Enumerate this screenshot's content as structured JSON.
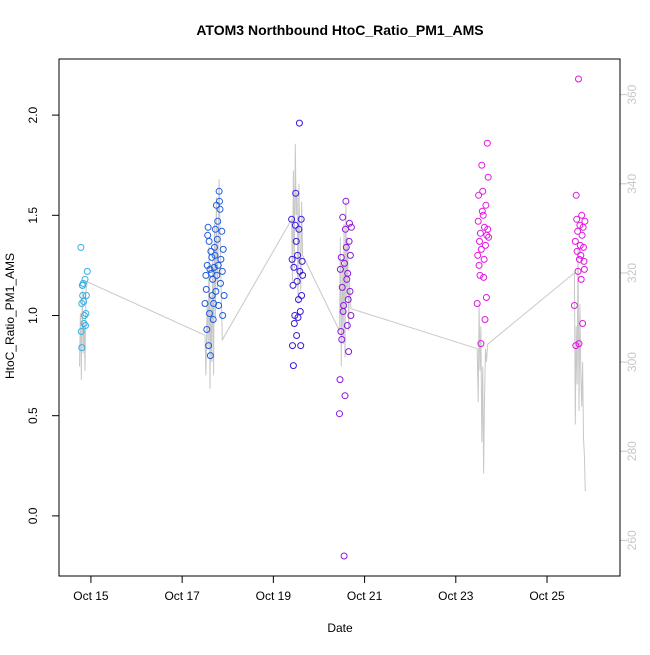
{
  "chart_data": {
    "type": "scatter",
    "title": "ATOM3 Northbound HtoC_Ratio_PM1_AMS",
    "xlabel": "Date",
    "ylabel": "HtoC_Ratio_PM1_AMS",
    "x_ticks": [
      "Oct 15",
      "Oct 17",
      "Oct 19",
      "Oct 21",
      "Oct 23",
      "Oct 25"
    ],
    "y_ticks": [
      "0.0",
      "0.5",
      "1.0",
      "1.5",
      "2.0"
    ],
    "y2_ticks": [
      "260",
      "280",
      "300",
      "320",
      "340",
      "360"
    ],
    "xlim": [
      14.3,
      26.6
    ],
    "ylim": [
      -0.3,
      2.28
    ],
    "y2lim": [
      252,
      368
    ],
    "grid": false,
    "point_colors": [
      "#3aaee0",
      "#1f5ce0",
      "#3a18e0",
      "#8a18e0",
      "#e018e0"
    ],
    "line_color": "#c8c8c8",
    "series": [
      {
        "color": "#3aaee0",
        "points": [
          [
            14.78,
            1.34
          ],
          [
            14.79,
            0.92
          ],
          [
            14.8,
            1.06
          ],
          [
            14.8,
            0.84
          ],
          [
            14.81,
            1.15
          ],
          [
            14.82,
            1.1
          ],
          [
            14.82,
            1.15
          ],
          [
            14.83,
            1.16
          ],
          [
            14.84,
            1.07
          ],
          [
            14.85,
            0.96
          ],
          [
            14.86,
            1.0
          ],
          [
            14.87,
            1.18
          ],
          [
            14.88,
            0.95
          ],
          [
            14.89,
            1.01
          ],
          [
            14.9,
            1.1
          ],
          [
            14.92,
            1.22
          ]
        ]
      },
      {
        "color": "#1f5ce0",
        "points": [
          [
            17.5,
            1.06
          ],
          [
            17.52,
            1.2
          ],
          [
            17.53,
            1.13
          ],
          [
            17.54,
            0.93
          ],
          [
            17.55,
            1.25
          ],
          [
            17.56,
            1.4
          ],
          [
            17.57,
            1.44
          ],
          [
            17.58,
            0.85
          ],
          [
            17.59,
            1.37
          ],
          [
            17.6,
            1.01
          ],
          [
            17.61,
            1.23
          ],
          [
            17.62,
            0.8
          ],
          [
            17.63,
            1.32
          ],
          [
            17.64,
            1.21
          ],
          [
            17.65,
            1.29
          ],
          [
            17.66,
            1.1
          ],
          [
            17.67,
            1.18
          ],
          [
            17.68,
            0.98
          ],
          [
            17.69,
            1.06
          ],
          [
            17.7,
            1.24
          ],
          [
            17.71,
            1.34
          ],
          [
            17.72,
            1.3
          ],
          [
            17.73,
            1.43
          ],
          [
            17.74,
            1.12
          ],
          [
            17.75,
            1.55
          ],
          [
            17.76,
            1.2
          ],
          [
            17.77,
            1.38
          ],
          [
            17.78,
            1.47
          ],
          [
            17.79,
            1.25
          ],
          [
            17.8,
            1.05
          ],
          [
            17.81,
            1.62
          ],
          [
            17.82,
            1.57
          ],
          [
            17.83,
            1.53
          ],
          [
            17.84,
            1.16
          ],
          [
            17.85,
            1.28
          ],
          [
            17.87,
            1.42
          ],
          [
            17.88,
            1.22
          ],
          [
            17.89,
            1.0
          ],
          [
            17.9,
            1.33
          ],
          [
            17.92,
            1.1
          ]
        ]
      },
      {
        "color": "#3a18e0",
        "points": [
          [
            19.4,
            1.48
          ],
          [
            19.41,
            1.28
          ],
          [
            19.42,
            0.85
          ],
          [
            19.43,
            1.15
          ],
          [
            19.44,
            0.75
          ],
          [
            19.45,
            1.24
          ],
          [
            19.46,
            0.96
          ],
          [
            19.47,
            1.0
          ],
          [
            19.48,
            1.45
          ],
          [
            19.49,
            1.61
          ],
          [
            19.5,
            1.37
          ],
          [
            19.51,
            0.9
          ],
          [
            19.52,
            1.17
          ],
          [
            19.53,
            1.3
          ],
          [
            19.54,
            0.99
          ],
          [
            19.55,
            1.08
          ],
          [
            19.56,
            1.43
          ],
          [
            19.57,
            1.96
          ],
          [
            19.58,
            1.22
          ],
          [
            19.59,
            1.02
          ],
          [
            19.6,
            0.85
          ],
          [
            19.61,
            1.48
          ],
          [
            19.62,
            1.1
          ],
          [
            19.63,
            1.27
          ],
          [
            19.64,
            1.2
          ]
        ]
      },
      {
        "color": "#8a18e0",
        "points": [
          [
            20.45,
            0.51
          ],
          [
            20.46,
            0.68
          ],
          [
            20.47,
            1.23
          ],
          [
            20.48,
            0.92
          ],
          [
            20.49,
            1.29
          ],
          [
            20.5,
            0.88
          ],
          [
            20.51,
            1.14
          ],
          [
            20.52,
            1.49
          ],
          [
            20.53,
            1.02
          ],
          [
            20.54,
            1.05
          ],
          [
            20.55,
            -0.2
          ],
          [
            20.56,
            1.26
          ],
          [
            20.57,
            0.6
          ],
          [
            20.58,
            1.43
          ],
          [
            20.59,
            1.57
          ],
          [
            20.6,
            1.34
          ],
          [
            20.61,
            1.18
          ],
          [
            20.62,
            0.95
          ],
          [
            20.63,
            1.21
          ],
          [
            20.64,
            1.08
          ],
          [
            20.65,
            0.82
          ],
          [
            20.66,
            1.37
          ],
          [
            20.67,
            1.46
          ],
          [
            20.68,
            1.12
          ],
          [
            20.69,
            1.3
          ],
          [
            20.7,
            1.0
          ],
          [
            20.71,
            1.44
          ]
        ]
      },
      {
        "color": "#e018e0",
        "points": [
          [
            23.47,
            1.06
          ],
          [
            23.48,
            1.3
          ],
          [
            23.49,
            1.47
          ],
          [
            23.5,
            1.6
          ],
          [
            23.51,
            1.25
          ],
          [
            23.52,
            1.37
          ],
          [
            23.53,
            1.2
          ],
          [
            23.54,
            1.41
          ],
          [
            23.55,
            0.86
          ],
          [
            23.56,
            1.33
          ],
          [
            23.57,
            1.75
          ],
          [
            23.58,
            1.52
          ],
          [
            23.59,
            1.62
          ],
          [
            23.6,
            1.5
          ],
          [
            23.61,
            1.19
          ],
          [
            23.62,
            1.28
          ],
          [
            23.63,
            1.44
          ],
          [
            23.64,
            0.98
          ],
          [
            23.65,
            1.35
          ],
          [
            23.66,
            1.55
          ],
          [
            23.67,
            1.09
          ],
          [
            23.68,
            1.4
          ],
          [
            23.69,
            1.86
          ],
          [
            23.7,
            1.43
          ],
          [
            23.71,
            1.69
          ],
          [
            23.72,
            1.39
          ],
          [
            25.6,
            1.05
          ],
          [
            25.62,
            1.37
          ],
          [
            25.63,
            0.85
          ],
          [
            25.64,
            1.6
          ],
          [
            25.65,
            1.48
          ],
          [
            25.66,
            1.32
          ],
          [
            25.67,
            1.42
          ],
          [
            25.68,
            1.22
          ],
          [
            25.69,
            2.18
          ],
          [
            25.7,
            0.86
          ],
          [
            25.71,
            1.28
          ],
          [
            25.72,
            1.45
          ],
          [
            25.73,
            1.35
          ],
          [
            25.74,
            1.3
          ],
          [
            25.75,
            1.18
          ],
          [
            25.76,
            1.5
          ],
          [
            25.77,
            1.4
          ],
          [
            25.78,
            0.96
          ],
          [
            25.79,
            1.44
          ],
          [
            25.8,
            1.34
          ],
          [
            25.81,
            1.27
          ],
          [
            25.82,
            1.23
          ],
          [
            25.83,
            1.47
          ]
        ]
      }
    ],
    "altitude_line": [
      [
        14.75,
        299
      ],
      [
        14.77,
        311
      ],
      [
        14.78,
        305
      ],
      [
        14.79,
        296
      ],
      [
        14.81,
        316
      ],
      [
        14.83,
        302
      ],
      [
        14.85,
        309
      ],
      [
        14.87,
        298
      ],
      [
        14.89,
        316
      ],
      [
        14.92,
        318
      ],
      [
        17.5,
        306
      ],
      [
        17.52,
        297
      ],
      [
        17.55,
        314
      ],
      [
        17.57,
        303
      ],
      [
        17.59,
        326
      ],
      [
        17.61,
        294
      ],
      [
        17.63,
        315
      ],
      [
        17.65,
        300
      ],
      [
        17.67,
        323
      ],
      [
        17.69,
        297
      ],
      [
        17.71,
        331
      ],
      [
        17.73,
        310
      ],
      [
        17.75,
        337
      ],
      [
        17.77,
        316
      ],
      [
        17.79,
        325
      ],
      [
        17.81,
        341
      ],
      [
        17.83,
        330
      ],
      [
        17.85,
        319
      ],
      [
        17.88,
        305
      ],
      [
        19.4,
        332
      ],
      [
        19.42,
        318
      ],
      [
        19.44,
        343
      ],
      [
        19.46,
        321
      ],
      [
        19.48,
        349
      ],
      [
        19.5,
        333
      ],
      [
        19.52,
        338
      ],
      [
        19.54,
        313
      ],
      [
        19.56,
        340
      ],
      [
        19.58,
        328
      ],
      [
        19.6,
        316
      ],
      [
        19.62,
        336
      ],
      [
        19.64,
        324
      ],
      [
        20.45,
        307
      ],
      [
        20.47,
        328
      ],
      [
        20.49,
        299
      ],
      [
        20.51,
        322
      ],
      [
        20.53,
        304
      ],
      [
        20.55,
        331
      ],
      [
        20.57,
        301
      ],
      [
        20.59,
        336
      ],
      [
        20.61,
        314
      ],
      [
        20.63,
        328
      ],
      [
        20.65,
        307
      ],
      [
        20.67,
        318
      ],
      [
        20.7,
        312
      ],
      [
        23.47,
        303
      ],
      [
        23.49,
        291
      ],
      [
        23.51,
        313
      ],
      [
        23.53,
        298
      ],
      [
        23.55,
        308
      ],
      [
        23.57,
        282
      ],
      [
        23.59,
        299
      ],
      [
        23.61,
        275
      ],
      [
        23.63,
        292
      ],
      [
        23.65,
        303
      ],
      [
        23.67,
        300
      ],
      [
        23.7,
        304
      ],
      [
        25.6,
        320
      ],
      [
        25.62,
        286
      ],
      [
        25.64,
        308
      ],
      [
        25.66,
        295
      ],
      [
        25.68,
        326
      ],
      [
        25.7,
        289
      ],
      [
        25.72,
        313
      ],
      [
        25.74,
        298
      ],
      [
        25.76,
        290
      ],
      [
        25.78,
        300
      ],
      [
        25.8,
        283
      ],
      [
        25.82,
        279
      ],
      [
        25.84,
        271
      ]
    ]
  }
}
